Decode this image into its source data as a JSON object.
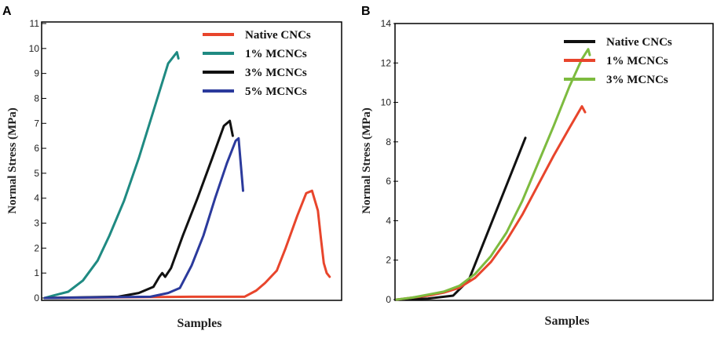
{
  "chart_data": [
    {
      "panel_label": "A",
      "type": "line",
      "xlabel": "Samples",
      "ylabel": "Normal Stress (MPa)",
      "ylim": [
        0,
        11
      ],
      "yticks": [
        0,
        1,
        2,
        3,
        4,
        5,
        6,
        7,
        8,
        9,
        10,
        11
      ],
      "xlim": [
        0,
        100
      ],
      "legend_position": "top-right",
      "series": [
        {
          "name": "Native CNCs",
          "color": "#e8452c",
          "points": [
            [
              0,
              0
            ],
            [
              50,
              0.05
            ],
            [
              68,
              0.05
            ],
            [
              72,
              0.3
            ],
            [
              75,
              0.6
            ],
            [
              79,
              1.1
            ],
            [
              82,
              2.0
            ],
            [
              86,
              3.3
            ],
            [
              89,
              4.2
            ],
            [
              91,
              4.3
            ],
            [
              93,
              3.5
            ],
            [
              94,
              2.4
            ],
            [
              95,
              1.4
            ],
            [
              96,
              1.0
            ],
            [
              97,
              0.85
            ]
          ]
        },
        {
          "name": "1% MCNCs",
          "color": "#1f8a82",
          "points": [
            [
              0,
              0
            ],
            [
              3,
              0.1
            ],
            [
              8,
              0.25
            ],
            [
              13,
              0.7
            ],
            [
              18,
              1.5
            ],
            [
              22,
              2.5
            ],
            [
              27,
              3.9
            ],
            [
              32,
              5.6
            ],
            [
              37,
              7.5
            ],
            [
              42,
              9.4
            ],
            [
              45,
              9.85
            ],
            [
              45.5,
              9.6
            ]
          ]
        },
        {
          "name": "3% MCNCs",
          "color": "#111111",
          "points": [
            [
              0,
              0
            ],
            [
              25,
              0.05
            ],
            [
              32,
              0.2
            ],
            [
              37,
              0.45
            ],
            [
              39,
              0.85
            ],
            [
              40,
              1.0
            ],
            [
              41,
              0.85
            ],
            [
              43,
              1.2
            ],
            [
              47,
              2.5
            ],
            [
              52,
              4.0
            ],
            [
              57,
              5.6
            ],
            [
              61,
              6.9
            ],
            [
              63,
              7.1
            ],
            [
              64,
              6.5
            ]
          ]
        },
        {
          "name": "5% MCNCs",
          "color": "#2b3a9c",
          "points": [
            [
              0,
              0
            ],
            [
              36,
              0.05
            ],
            [
              42,
              0.2
            ],
            [
              46,
              0.4
            ],
            [
              50,
              1.3
            ],
            [
              54,
              2.5
            ],
            [
              58,
              4.0
            ],
            [
              62,
              5.4
            ],
            [
              65,
              6.3
            ],
            [
              66,
              6.4
            ],
            [
              67,
              5.0
            ],
            [
              67.5,
              4.3
            ]
          ]
        }
      ]
    },
    {
      "panel_label": "B",
      "type": "line",
      "xlabel": "Samples",
      "ylabel": "Normal Stress (MPa)",
      "ylim": [
        0,
        14
      ],
      "yticks": [
        0,
        2,
        4,
        6,
        8,
        10,
        12,
        14
      ],
      "xlim": [
        0,
        100
      ],
      "legend_position": "top-right",
      "series": [
        {
          "name": "Native CNCs",
          "color": "#111111",
          "points": [
            [
              0,
              0
            ],
            [
              10,
              0.05
            ],
            [
              18,
              0.2
            ],
            [
              23,
              1.0
            ],
            [
              27,
              2.6
            ],
            [
              32,
              4.6
            ],
            [
              37,
              6.6
            ],
            [
              41,
              8.2
            ]
          ]
        },
        {
          "name": "1% MCNCs",
          "color": "#e8452c",
          "points": [
            [
              0,
              0
            ],
            [
              5,
              0.1
            ],
            [
              10,
              0.2
            ],
            [
              15,
              0.35
            ],
            [
              20,
              0.6
            ],
            [
              25,
              1.1
            ],
            [
              30,
              1.9
            ],
            [
              35,
              3.0
            ],
            [
              40,
              4.3
            ],
            [
              45,
              5.8
            ],
            [
              50,
              7.3
            ],
            [
              55,
              8.7
            ],
            [
              59,
              9.8
            ],
            [
              60,
              9.5
            ]
          ]
        },
        {
          "name": "3% MCNCs",
          "color": "#7dbb3f",
          "points": [
            [
              0,
              0
            ],
            [
              5,
              0.1
            ],
            [
              10,
              0.25
            ],
            [
              15,
              0.4
            ],
            [
              20,
              0.7
            ],
            [
              25,
              1.3
            ],
            [
              30,
              2.2
            ],
            [
              35,
              3.4
            ],
            [
              40,
              5.0
            ],
            [
              45,
              6.9
            ],
            [
              50,
              8.8
            ],
            [
              55,
              10.8
            ],
            [
              59,
              12.2
            ],
            [
              61,
              12.7
            ],
            [
              61.5,
              12.4
            ]
          ]
        }
      ]
    }
  ]
}
